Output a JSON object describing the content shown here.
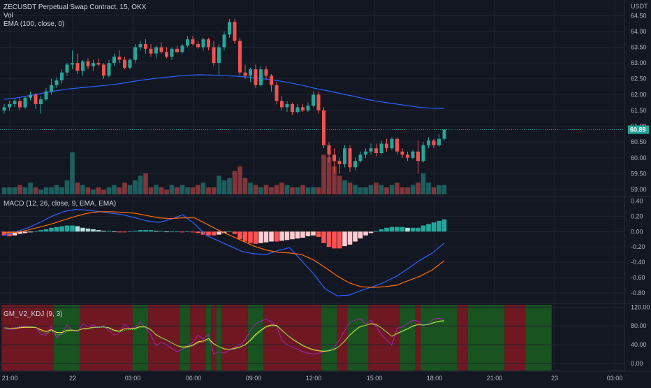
{
  "header": {
    "title": "ZECUSDT Perpetual Swap Contract, 15, OKX",
    "vol_label": "Vol",
    "ema_label": "EMA (100, close, 0)",
    "currency": "USDT"
  },
  "macd_panel": {
    "label": "MACD (12, 26, close, 9, EMA, EMA)"
  },
  "kdj_panel": {
    "label": "GM_V2_KDJ (9, 3)"
  },
  "colors": {
    "background": "#131722",
    "grid": "#1f2330",
    "bull": "#26a69a",
    "bear": "#ef5350",
    "ema": "#2962ff",
    "macd": "#2962ff",
    "signal": "#ff6d00",
    "hist_pos_strong": "#26a69a",
    "hist_pos_weak": "#b2dfdb",
    "hist_neg_strong": "#ff5252",
    "hist_neg_weak": "#ffcdd2",
    "bg_green": "#1b5e20",
    "bg_red": "#801922",
    "k_line": "#9c27b0",
    "d_line": "#ffeb3b",
    "j_line": "#4caf50",
    "last_price": "#26a69a"
  },
  "chart_data": [
    {
      "type": "candlestick",
      "name": "price",
      "x_axis_labels": [
        "21:00",
        "22",
        "03:00",
        "06:00",
        "09:00",
        "12:00",
        "15:00",
        "18:00",
        "21:00",
        "23",
        "03:00"
      ],
      "y_ticks": [
        "59.00",
        "59.50",
        "60.00",
        "60.50",
        "61.00",
        "61.50",
        "62.00",
        "62.50",
        "63.00",
        "63.50",
        "64.00",
        "64.50"
      ],
      "ylim": [
        58.8,
        64.95
      ],
      "last_price": 60.89,
      "last_price_label": "60.89",
      "candles": [
        [
          61.5,
          61.7,
          61.4,
          61.6
        ],
        [
          61.6,
          61.8,
          61.5,
          61.7
        ],
        [
          61.7,
          61.85,
          61.6,
          61.8
        ],
        [
          61.8,
          61.9,
          61.5,
          61.6
        ],
        [
          61.6,
          61.95,
          61.55,
          61.9
        ],
        [
          61.9,
          62.1,
          61.8,
          62.0
        ],
        [
          62.0,
          62.05,
          61.55,
          61.7
        ],
        [
          61.7,
          61.95,
          61.4,
          61.85
        ],
        [
          61.85,
          62.2,
          61.8,
          62.1
        ],
        [
          62.1,
          62.5,
          62.0,
          62.3
        ],
        [
          62.3,
          62.55,
          62.2,
          62.45
        ],
        [
          62.45,
          62.8,
          62.35,
          62.7
        ],
        [
          62.7,
          63.0,
          62.6,
          62.95
        ],
        [
          62.95,
          63.4,
          62.8,
          63.0
        ],
        [
          63.0,
          63.3,
          62.65,
          62.75
        ],
        [
          62.75,
          63.1,
          62.6,
          63.05
        ],
        [
          63.05,
          63.15,
          62.8,
          62.9
        ],
        [
          62.9,
          63.1,
          62.75,
          63.0
        ],
        [
          63.0,
          63.15,
          62.9,
          62.95
        ],
        [
          62.95,
          63.0,
          62.5,
          62.6
        ],
        [
          62.6,
          63.1,
          62.55,
          63.0
        ],
        [
          63.0,
          63.3,
          62.9,
          63.2
        ],
        [
          63.2,
          63.4,
          63.0,
          63.1
        ],
        [
          63.1,
          63.2,
          62.8,
          62.85
        ],
        [
          62.85,
          63.15,
          62.8,
          63.1
        ],
        [
          63.1,
          63.6,
          63.0,
          63.5
        ],
        [
          63.5,
          63.7,
          63.4,
          63.6
        ],
        [
          63.6,
          63.75,
          63.3,
          63.45
        ],
        [
          63.45,
          63.6,
          63.2,
          63.3
        ],
        [
          63.3,
          63.55,
          63.15,
          63.5
        ],
        [
          63.5,
          63.65,
          63.3,
          63.35
        ],
        [
          63.35,
          63.5,
          63.15,
          63.2
        ],
        [
          63.2,
          63.5,
          63.1,
          63.45
        ],
        [
          63.45,
          63.55,
          63.3,
          63.35
        ],
        [
          63.35,
          63.6,
          63.3,
          63.55
        ],
        [
          63.55,
          63.85,
          63.5,
          63.75
        ],
        [
          63.75,
          63.85,
          63.55,
          63.6
        ],
        [
          63.6,
          63.7,
          63.45,
          63.5
        ],
        [
          63.5,
          63.8,
          63.4,
          63.75
        ],
        [
          63.75,
          63.8,
          63.4,
          63.5
        ],
        [
          63.5,
          63.7,
          62.9,
          63.0
        ],
        [
          63.0,
          63.6,
          62.6,
          63.5
        ],
        [
          63.5,
          64.0,
          63.4,
          63.9
        ],
        [
          63.9,
          64.4,
          63.8,
          64.3
        ],
        [
          64.3,
          64.4,
          63.6,
          63.7
        ],
        [
          63.7,
          63.8,
          62.6,
          62.7
        ],
        [
          62.7,
          62.95,
          62.5,
          62.6
        ],
        [
          62.6,
          62.85,
          62.4,
          62.8
        ],
        [
          62.8,
          62.95,
          62.2,
          62.3
        ],
        [
          62.3,
          62.9,
          62.25,
          62.8
        ],
        [
          62.8,
          62.9,
          62.5,
          62.6
        ],
        [
          62.6,
          62.65,
          62.1,
          62.3
        ],
        [
          62.3,
          62.4,
          61.7,
          61.8
        ],
        [
          61.8,
          61.95,
          61.5,
          61.6
        ],
        [
          61.6,
          61.8,
          61.45,
          61.7
        ],
        [
          61.7,
          61.75,
          61.35,
          61.45
        ],
        [
          61.45,
          61.7,
          61.4,
          61.6
        ],
        [
          61.6,
          61.7,
          61.45,
          61.5
        ],
        [
          61.5,
          61.75,
          61.45,
          61.65
        ],
        [
          61.65,
          62.1,
          61.6,
          62.0
        ],
        [
          62.0,
          62.1,
          61.4,
          61.5
        ],
        [
          61.5,
          61.6,
          60.3,
          60.4
        ],
        [
          60.4,
          60.5,
          59.85,
          60.1
        ],
        [
          60.1,
          60.3,
          59.5,
          59.9
        ],
        [
          59.9,
          60.0,
          59.5,
          59.8
        ],
        [
          59.8,
          60.4,
          59.7,
          60.3
        ],
        [
          60.3,
          60.4,
          59.55,
          59.7
        ],
        [
          59.7,
          60.0,
          59.6,
          59.9
        ],
        [
          59.9,
          60.2,
          59.85,
          60.1
        ],
        [
          60.1,
          60.3,
          60.0,
          60.2
        ],
        [
          60.2,
          60.45,
          60.1,
          60.3
        ],
        [
          60.3,
          60.45,
          60.05,
          60.15
        ],
        [
          60.15,
          60.55,
          60.1,
          60.45
        ],
        [
          60.45,
          60.6,
          60.2,
          60.3
        ],
        [
          60.3,
          60.65,
          60.25,
          60.6
        ],
        [
          60.6,
          60.65,
          60.1,
          60.2
        ],
        [
          60.2,
          60.3,
          60.0,
          60.1
        ],
        [
          60.1,
          60.2,
          59.9,
          60.0
        ],
        [
          60.0,
          60.25,
          59.95,
          60.2
        ],
        [
          60.2,
          60.55,
          59.5,
          59.9
        ],
        [
          59.9,
          60.5,
          59.85,
          60.4
        ],
        [
          60.4,
          60.65,
          60.3,
          60.55
        ],
        [
          60.55,
          60.6,
          60.3,
          60.4
        ],
        [
          60.4,
          60.75,
          60.35,
          60.6
        ],
        [
          60.6,
          60.9,
          60.55,
          60.89
        ]
      ]
    },
    {
      "type": "bar",
      "name": "volume",
      "values": [
        3,
        3,
        3,
        4,
        3,
        5,
        3,
        2,
        3,
        3,
        4,
        3,
        6,
        18,
        5,
        4,
        3,
        2,
        3,
        2,
        3,
        4,
        3,
        5,
        4,
        6,
        8,
        9,
        3,
        4,
        3,
        2,
        4,
        3,
        4,
        3,
        3,
        4,
        5,
        3,
        3,
        8,
        6,
        7,
        10,
        12,
        7,
        5,
        4,
        3,
        4,
        3,
        4,
        5,
        4,
        3,
        3,
        4,
        3,
        3,
        3,
        17,
        16,
        12,
        8,
        6,
        5,
        4,
        3,
        3,
        4,
        5,
        4,
        3,
        4,
        5,
        3,
        3,
        4,
        5,
        9,
        5,
        3,
        4,
        4
      ],
      "ylim": [
        0,
        24
      ]
    },
    {
      "type": "line",
      "name": "EMA (100)",
      "values": [
        61.85,
        61.9,
        61.97,
        62.05,
        62.12,
        62.18,
        62.22,
        62.26,
        62.3,
        62.35,
        62.42,
        62.48,
        62.53,
        62.57,
        62.61,
        62.63,
        62.62,
        62.6,
        62.58,
        62.55,
        62.5,
        62.45,
        62.38,
        62.3,
        62.2,
        62.12,
        62.03,
        61.95,
        61.85,
        61.78,
        61.72,
        61.66,
        61.6,
        61.57,
        61.56
      ],
      "ylim": [
        58.8,
        64.95
      ]
    },
    {
      "type": "bar+line",
      "name": "MACD (12, 26, close, 9, EMA, EMA)",
      "y_ticks": [
        "0.40",
        "0.20",
        "0.00",
        "-0.20",
        "-0.40",
        "-0.60",
        "-0.80"
      ],
      "ylim": [
        -0.92,
        0.45
      ],
      "histogram": [
        -0.05,
        -0.06,
        -0.05,
        -0.03,
        -0.02,
        -0.01,
        0.0,
        0.02,
        0.03,
        0.05,
        0.06,
        0.07,
        0.08,
        0.08,
        0.07,
        0.05,
        0.04,
        0.03,
        0.02,
        0.01,
        0.01,
        0.0,
        -0.01,
        -0.01,
        -0.0,
        0.01,
        0.02,
        0.02,
        0.02,
        0.01,
        0.01,
        0.0,
        0.0,
        0.0,
        -0.01,
        0.0,
        -0.01,
        -0.02,
        -0.04,
        -0.05,
        -0.05,
        -0.04,
        -0.02,
        0.0,
        -0.03,
        -0.1,
        -0.13,
        -0.15,
        -0.16,
        -0.15,
        -0.14,
        -0.13,
        -0.13,
        -0.12,
        -0.11,
        -0.1,
        -0.09,
        -0.08,
        -0.06,
        -0.05,
        -0.07,
        -0.15,
        -0.2,
        -0.22,
        -0.22,
        -0.19,
        -0.17,
        -0.13,
        -0.09,
        -0.05,
        -0.02,
        0.01,
        0.03,
        0.05,
        0.06,
        0.06,
        0.06,
        0.05,
        0.05,
        0.05,
        0.08,
        0.1,
        0.12,
        0.14,
        0.16
      ],
      "macd_line": [
        -0.05,
        0.0,
        0.05,
        0.12,
        0.2,
        0.26,
        0.29,
        0.28,
        0.26,
        0.24,
        0.22,
        0.18,
        0.14,
        0.12,
        0.16,
        0.22,
        0.1,
        -0.05,
        -0.12,
        -0.19,
        -0.26,
        -0.29,
        -0.3,
        -0.25,
        -0.21,
        -0.38,
        -0.55,
        -0.75,
        -0.84,
        -0.83,
        -0.77,
        -0.72,
        -0.66,
        -0.58,
        -0.48,
        -0.37,
        -0.28,
        -0.15
      ],
      "signal_line": [
        -0.01,
        -0.01,
        0.02,
        0.06,
        0.1,
        0.15,
        0.2,
        0.24,
        0.26,
        0.26,
        0.25,
        0.24,
        0.21,
        0.18,
        0.17,
        0.18,
        0.18,
        0.1,
        0.02,
        -0.05,
        -0.12,
        -0.19,
        -0.24,
        -0.27,
        -0.28,
        -0.3,
        -0.37,
        -0.47,
        -0.58,
        -0.67,
        -0.72,
        -0.73,
        -0.72,
        -0.7,
        -0.64,
        -0.58,
        -0.5,
        -0.38
      ]
    },
    {
      "type": "line",
      "name": "GM_V2_KDJ (9, 3)",
      "y_ticks": [
        "120.00",
        "80.00",
        "40.00",
        "0.00"
      ],
      "ylim": [
        -15,
        125
      ],
      "background_segments": [
        [
          "r",
          10
        ],
        [
          "g",
          5
        ],
        [
          "r",
          10
        ],
        [
          "g",
          3
        ],
        [
          "r",
          6
        ],
        [
          "g",
          2
        ],
        [
          "r",
          3
        ],
        [
          "g",
          1
        ],
        [
          "r",
          1
        ],
        [
          "g",
          1
        ],
        [
          "r",
          5
        ],
        [
          "g",
          3
        ],
        [
          "r",
          11
        ],
        [
          "g",
          3
        ],
        [
          "r",
          2
        ],
        [
          "g",
          4
        ],
        [
          "r",
          6
        ],
        [
          "g",
          3
        ],
        [
          "r",
          1
        ],
        [
          "g",
          7
        ],
        [
          "r",
          2
        ],
        [
          "g",
          7
        ],
        [
          "r",
          4
        ],
        [
          "g",
          5
        ]
      ],
      "k_line": [
        76,
        72,
        74,
        79,
        80,
        78,
        77,
        62,
        60,
        80,
        55,
        65,
        82,
        70,
        68,
        84,
        78,
        82,
        78,
        80,
        70,
        60,
        65,
        84,
        74,
        78,
        88,
        76,
        60,
        38,
        45,
        40,
        32,
        25,
        30,
        38,
        45,
        60,
        52,
        62,
        20,
        25,
        22,
        28,
        35,
        40,
        50,
        70,
        85,
        90,
        95,
        88,
        80,
        50,
        40,
        35,
        30,
        25,
        22,
        20,
        22,
        25,
        28,
        35,
        50,
        70,
        88,
        92,
        96,
        84,
        92,
        78,
        62,
        50,
        40,
        75,
        78,
        85,
        92,
        90,
        80,
        85,
        95,
        96,
        94
      ],
      "d_line": [
        76,
        75,
        75,
        76,
        77,
        77,
        77,
        72,
        68,
        72,
        66,
        66,
        71,
        71,
        70,
        74,
        75,
        77,
        77,
        78,
        76,
        71,
        69,
        74,
        74,
        75,
        79,
        78,
        72,
        61,
        55,
        50,
        44,
        38,
        35,
        36,
        39,
        46,
        48,
        53,
        42,
        36,
        31,
        30,
        32,
        35,
        40,
        50,
        62,
        71,
        79,
        82,
        81,
        71,
        61,
        52,
        45,
        38,
        33,
        29,
        27,
        26,
        27,
        30,
        37,
        48,
        61,
        71,
        79,
        81,
        85,
        83,
        76,
        67,
        58,
        64,
        69,
        74,
        80,
        83,
        82,
        83,
        87,
        90,
        91
      ],
      "j_line": [
        76,
        75,
        76,
        78,
        79,
        79,
        78,
        69,
        64,
        69,
        61,
        62,
        68,
        70,
        70,
        73,
        74,
        76,
        77,
        78,
        75,
        69,
        67,
        71,
        72,
        73,
        77,
        77,
        71,
        62,
        55,
        50,
        44,
        38,
        34,
        34,
        37,
        44,
        46,
        50,
        41,
        36,
        32,
        30,
        31,
        34,
        39,
        48,
        59,
        68,
        77,
        80,
        80,
        70,
        61,
        53,
        46,
        39,
        34,
        30,
        28,
        27,
        28,
        31,
        37,
        47,
        60,
        70,
        78,
        81,
        84,
        82,
        76,
        67,
        58,
        63,
        68,
        73,
        79,
        82,
        82,
        83,
        86,
        89,
        90
      ]
    }
  ]
}
